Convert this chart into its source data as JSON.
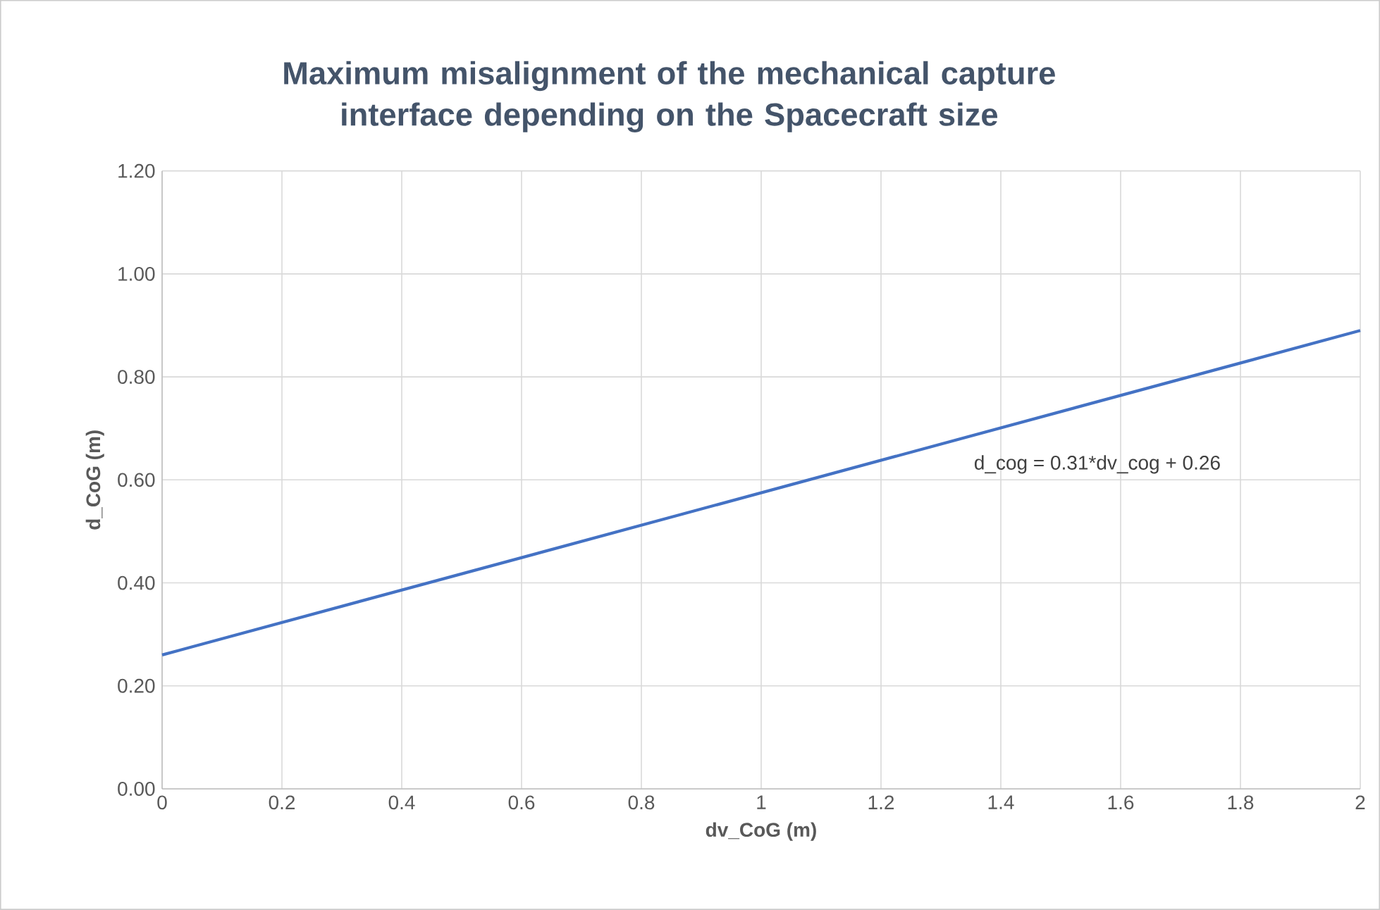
{
  "chart_data": {
    "type": "line",
    "title": "Maximum misalignment of the mechanical capture interface depending on the Spacecraft size",
    "xlabel": "dv_CoG (m)",
    "ylabel": "d_CoG (m)",
    "x": [
      0,
      2
    ],
    "series": [
      {
        "color": "#4472c4",
        "values": [
          0.26,
          0.89
        ]
      }
    ],
    "xlim": [
      0,
      2
    ],
    "ylim": [
      0,
      1.2
    ],
    "xticks": [
      0,
      0.2,
      0.4,
      0.6,
      0.8,
      1,
      1.2,
      1.4,
      1.6,
      1.8,
      2
    ],
    "yticks": [
      {
        "value": 0,
        "label": "0.00"
      },
      {
        "value": 0.2,
        "label": "0.20"
      },
      {
        "value": 0.4,
        "label": "0.40"
      },
      {
        "value": 0.6,
        "label": "0.60"
      },
      {
        "value": 0.8,
        "label": "0.80"
      },
      {
        "value": 1.0,
        "label": "1.00"
      },
      {
        "value": 1.2,
        "label": "1.20"
      }
    ],
    "grid": true,
    "annotations": [
      "d_cog = 0.31*dv_cog + 0.26"
    ]
  }
}
